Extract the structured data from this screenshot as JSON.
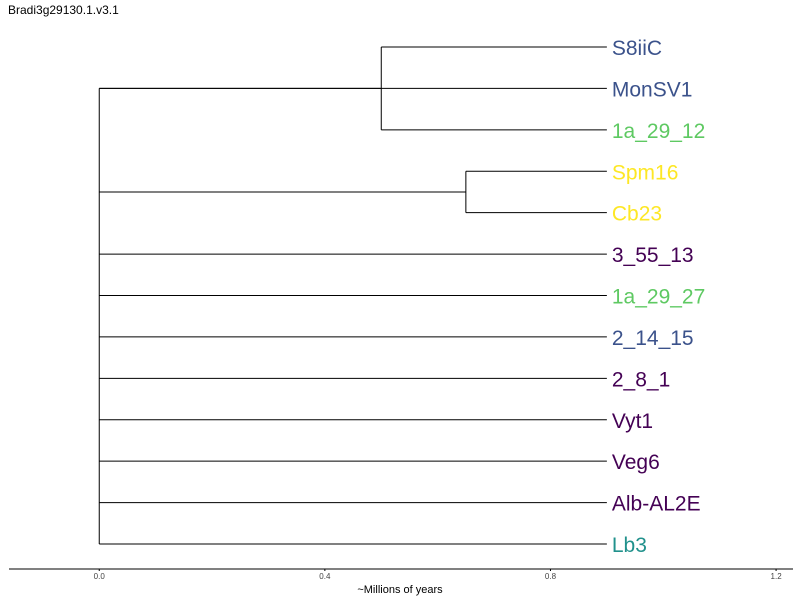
{
  "chart_data": {
    "type": "dendrogram",
    "title": "Bradi3g29130.1.v3.1",
    "xlabel": "~Millions of years",
    "xlim": [
      -0.16,
      1.23
    ],
    "xticks": [
      0.0,
      0.4,
      0.8,
      1.2
    ],
    "xtick_labels": [
      "0.0",
      "0.4",
      "0.8",
      "1.2"
    ],
    "tip_x": 0.9,
    "colors": {
      "navy": "#3b528b",
      "green": "#5ec962",
      "yellow": "#fde725",
      "purple": "#440154",
      "teal": "#21918c"
    },
    "leaves": [
      {
        "name": "S8iiC",
        "color": "navy"
      },
      {
        "name": "MonSV1",
        "color": "navy"
      },
      {
        "name": "1a_29_12",
        "color": "green"
      },
      {
        "name": "Spm16",
        "color": "yellow"
      },
      {
        "name": "Cb23",
        "color": "yellow"
      },
      {
        "name": "3_55_13",
        "color": "purple"
      },
      {
        "name": "1a_29_27",
        "color": "green"
      },
      {
        "name": "2_14_15",
        "color": "navy"
      },
      {
        "name": "2_8_1",
        "color": "purple"
      },
      {
        "name": "Vyt1",
        "color": "purple"
      },
      {
        "name": "Veg6",
        "color": "purple"
      },
      {
        "name": "Alb-AL2E",
        "color": "purple"
      },
      {
        "name": "Lb3",
        "color": "teal"
      }
    ],
    "tree": {
      "x": 0.0,
      "children": [
        {
          "x": 0.5,
          "children": [
            {
              "leaf": 0
            },
            {
              "leaf": 2
            }
          ]
        },
        {
          "leaf": 1
        },
        {
          "x": 0.65,
          "children": [
            {
              "leaf": 3
            },
            {
              "leaf": 4
            }
          ]
        },
        {
          "leaf": 5
        },
        {
          "leaf": 6
        },
        {
          "leaf": 7
        },
        {
          "leaf": 8
        },
        {
          "leaf": 9
        },
        {
          "leaf": 10
        },
        {
          "leaf": 11
        },
        {
          "leaf": 12
        }
      ]
    }
  }
}
